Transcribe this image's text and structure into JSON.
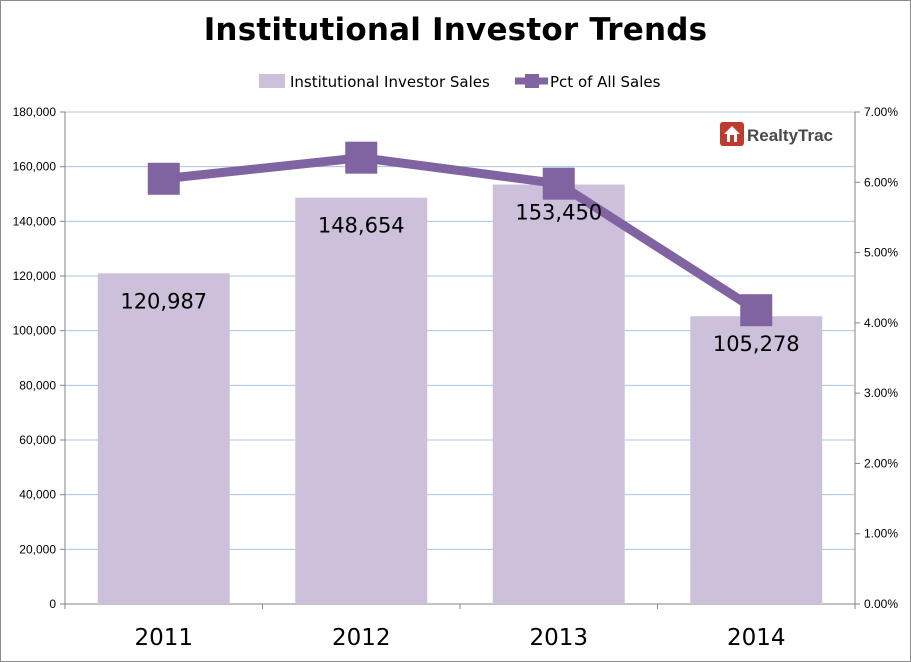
{
  "chart_data": {
    "type": "bar",
    "title": "Institutional Investor Trends",
    "categories": [
      "2011",
      "2012",
      "2013",
      "2014"
    ],
    "series": [
      {
        "name": "Institutional Investor Sales",
        "type": "bar",
        "axis": "left",
        "values": [
          120987,
          148654,
          153450,
          105278
        ],
        "data_labels": [
          "120,987",
          "148,654",
          "153,450",
          "105,278"
        ],
        "color": "#ccc0da"
      },
      {
        "name": "Pct of All Sales",
        "type": "line",
        "axis": "right",
        "values": [
          6.05,
          6.35,
          5.98,
          4.18
        ],
        "color": "#8064a2"
      }
    ],
    "y_left": {
      "min": 0,
      "max": 180000,
      "ticks": [
        "0",
        "20,000",
        "40,000",
        "60,000",
        "80,000",
        "100,000",
        "120,000",
        "140,000",
        "160,000",
        "180,000"
      ]
    },
    "y_right": {
      "min": 0,
      "max": 7,
      "ticks": [
        "0.00%",
        "1.00%",
        "2.00%",
        "3.00%",
        "4.00%",
        "5.00%",
        "6.00%",
        "7.00%"
      ]
    },
    "grid": true,
    "legend": "top-center"
  },
  "logo": {
    "text": "RealtyTrac",
    "icon": "house-icon",
    "brand_color": "#c0392b"
  }
}
